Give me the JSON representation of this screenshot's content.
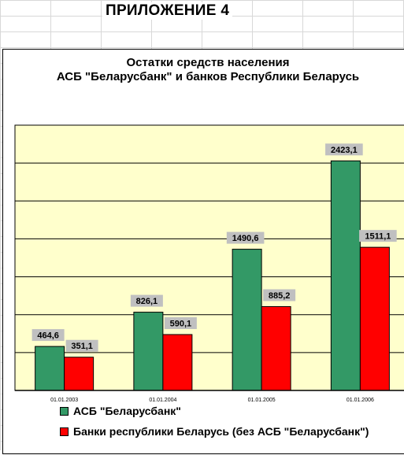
{
  "page": {
    "heading": "ПРИЛОЖЕНИЕ 4"
  },
  "chart_data": {
    "type": "bar",
    "title": "Остатки средств населения",
    "subtitle": "АСБ \"Беларусбанк\" и банков Республики Беларусь",
    "categories": [
      "01.01.2003",
      "01.01.2004",
      "01.01.2005",
      "01.01.2006"
    ],
    "series": [
      {
        "name": "АСБ \"Беларусбанк\"",
        "color": "#339966",
        "values": [
          464.6,
          826.1,
          1490.6,
          2423.1
        ],
        "labels": [
          "464,6",
          "826,1",
          "1490,6",
          "2423,1"
        ]
      },
      {
        "name": "Банки республики Беларусь (без АСБ \"Беларусбанк\")",
        "color": "#ff0000",
        "values": [
          351.1,
          590.1,
          885.2,
          1511.1
        ],
        "labels": [
          "351,1",
          "590,1",
          "885,2",
          "1511,1"
        ]
      }
    ],
    "ylim": [
      0,
      2800
    ],
    "gridlines": true,
    "plot_background": "#ffffcc",
    "legend_position": "bottom"
  }
}
